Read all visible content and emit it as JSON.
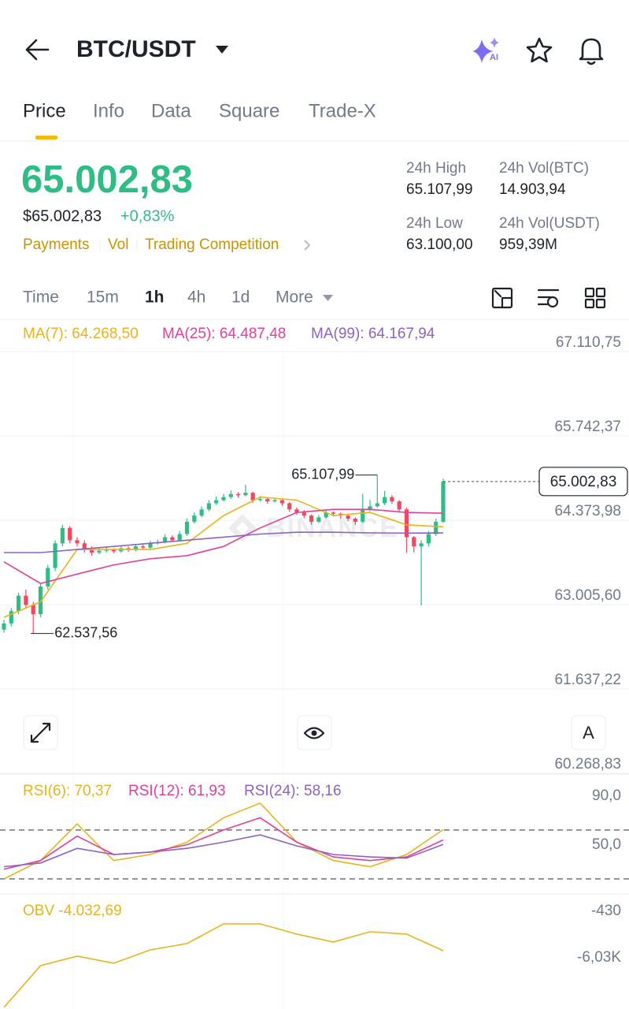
{
  "header": {
    "pair": "BTC/USDT",
    "ai_badge": "AI"
  },
  "tabs": [
    "Price",
    "Info",
    "Data",
    "Square",
    "Trade-X"
  ],
  "ticker": {
    "last_price": "65.002,83",
    "usd_price": "$65.002,83",
    "change": "+0,83%",
    "links": [
      "Payments",
      "Vol",
      "Trading Competition"
    ],
    "stats": [
      {
        "label": "24h High",
        "value": "65.107,99"
      },
      {
        "label": "24h Vol(BTC)",
        "value": "14.903,94"
      },
      {
        "label": "24h Low",
        "value": "63.100,00"
      },
      {
        "label": "24h Vol(USDT)",
        "value": "959,39M"
      }
    ]
  },
  "intervals": [
    "Time",
    "15m",
    "1h",
    "4h",
    "1d",
    "More"
  ],
  "chart_data": {
    "type": "candlestick",
    "up_color": "#2ebd85",
    "down_color": "#f6465d",
    "watermark": "BINANCE",
    "ylim": [
      60154,
      67571
    ],
    "yticks": [
      {
        "value": 67110.75,
        "label": "67.110,75"
      },
      {
        "value": 65742.37,
        "label": "65.742,37"
      },
      {
        "value": 64373.98,
        "label": "64.373,98"
      },
      {
        "value": 63005.6,
        "label": "63.005,60"
      },
      {
        "value": 61637.22,
        "label": "61.637,22"
      },
      {
        "value": 60268.83,
        "label": "60.268,83"
      }
    ],
    "grid": true,
    "candles": [
      [
        62600,
        62760,
        62550,
        62700
      ],
      [
        62700,
        62950,
        62650,
        62900
      ],
      [
        62900,
        63200,
        62850,
        63150
      ],
      [
        63150,
        63250,
        62950,
        63000
      ],
      [
        63000,
        63050,
        62537.56,
        62850
      ],
      [
        62850,
        63350,
        62800,
        63300
      ],
      [
        63300,
        63650,
        63250,
        63600
      ],
      [
        63600,
        64050,
        63550,
        64000
      ],
      [
        64000,
        64300,
        63950,
        64250
      ],
      [
        64250,
        64280,
        64000,
        64050
      ],
      [
        64050,
        64100,
        63950,
        64000
      ],
      [
        64000,
        64050,
        63850,
        63900
      ],
      [
        63900,
        63950,
        63800,
        63850
      ],
      [
        63850,
        63930,
        63820,
        63880
      ],
      [
        63880,
        63950,
        63850,
        63900
      ],
      [
        63900,
        63920,
        63840,
        63870
      ],
      [
        63870,
        63960,
        63850,
        63920
      ],
      [
        63920,
        63950,
        63860,
        63890
      ],
      [
        63890,
        63990,
        63870,
        63950
      ],
      [
        63950,
        63980,
        63900,
        63930
      ],
      [
        63930,
        64040,
        63910,
        64000
      ],
      [
        64000,
        64060,
        63980,
        64020
      ],
      [
        64020,
        64150,
        64000,
        64100
      ],
      [
        64100,
        64130,
        64020,
        64050
      ],
      [
        64050,
        64200,
        64030,
        64150
      ],
      [
        64150,
        64400,
        64120,
        64350
      ],
      [
        64350,
        64500,
        64320,
        64450
      ],
      [
        64450,
        64600,
        64420,
        64550
      ],
      [
        64550,
        64700,
        64520,
        64650
      ],
      [
        64650,
        64760,
        64620,
        64700
      ],
      [
        64700,
        64800,
        64680,
        64750
      ],
      [
        64750,
        64860,
        64720,
        64800
      ],
      [
        64800,
        64830,
        64740,
        64780
      ],
      [
        64780,
        64950,
        64760,
        64820
      ],
      [
        64820,
        64840,
        64660,
        64700
      ],
      [
        64700,
        64770,
        64680,
        64720
      ],
      [
        64720,
        64740,
        64640,
        64680
      ],
      [
        64680,
        64740,
        64660,
        64700
      ],
      [
        64700,
        64720,
        64610,
        64650
      ],
      [
        64650,
        64670,
        64510,
        64550
      ],
      [
        64550,
        64580,
        64460,
        64500
      ],
      [
        64500,
        64540,
        64410,
        64450
      ],
      [
        64450,
        64470,
        64300,
        64350
      ],
      [
        64350,
        64460,
        64330,
        64420
      ],
      [
        64420,
        64540,
        64400,
        64500
      ],
      [
        64500,
        64520,
        64440,
        64480
      ],
      [
        64480,
        64500,
        64400,
        64450
      ],
      [
        64450,
        64470,
        64360,
        64400
      ],
      [
        64400,
        64420,
        64300,
        64350
      ],
      [
        64350,
        64800,
        64330,
        64550
      ],
      [
        64550,
        64700,
        64520,
        64600
      ],
      [
        64600,
        65107.99,
        64580,
        64650
      ],
      [
        64650,
        64850,
        64620,
        64750
      ],
      [
        64750,
        64780,
        64640,
        64680
      ],
      [
        64680,
        64700,
        64500,
        64550
      ],
      [
        64550,
        64580,
        63850,
        64100
      ],
      [
        64100,
        64120,
        63850,
        63950
      ],
      [
        63950,
        64050,
        62992,
        64000
      ],
      [
        64000,
        64200,
        63950,
        64150
      ],
      [
        64150,
        64400,
        64120,
        64350
      ],
      [
        64350,
        65050,
        64330,
        65002.83
      ]
    ],
    "x": [
      0,
      5,
      10,
      15,
      20,
      25,
      30,
      35,
      40,
      45,
      50,
      55,
      60
    ],
    "series": [
      {
        "name": "MA(7): 64.268,50",
        "color": "#e8b41b",
        "values": [
          62800,
          63050,
          63900,
          63900,
          63900,
          64000,
          64450,
          64750,
          64700,
          64450,
          64500,
          64300,
          64268.5
        ]
      },
      {
        "name": "MA(25): 64.487,48",
        "color": "#e0409c",
        "values": [
          63700,
          63350,
          63500,
          63650,
          63750,
          63800,
          63950,
          64250,
          64500,
          64550,
          64550,
          64500,
          64487.48
        ]
      },
      {
        "name": "MA(99): 64.167,94",
        "color": "#8f62c2",
        "values": [
          63850,
          63850,
          63900,
          63950,
          64000,
          64050,
          64100,
          64150,
          64180,
          64180,
          64170,
          64165,
          64167.94
        ]
      }
    ],
    "annotations": [
      {
        "value": 65107.99,
        "label": "65.107,99"
      },
      {
        "value": 62537.56,
        "label": "62.537,56"
      }
    ],
    "current_price": {
      "value": 65002.83,
      "label": "65.002,83"
    },
    "controls": {
      "auto": "A"
    },
    "rsi": {
      "ylim": [
        20.3,
        110.6
      ],
      "yticks": [
        {
          "value": 90,
          "label": "90,0"
        },
        {
          "value": 50,
          "label": "50,0"
        }
      ],
      "levels": [
        70,
        30
      ],
      "series": [
        {
          "name": "RSI(6): 70,37",
          "color": "#e8b41b",
          "values": [
            30,
            45,
            75,
            45,
            50,
            60,
            80,
            92,
            60,
            45,
            40,
            50,
            70.37
          ]
        },
        {
          "name": "RSI(12): 61,93",
          "color": "#e0409c",
          "values": [
            38,
            45,
            65,
            50,
            52,
            58,
            70,
            80,
            60,
            48,
            45,
            48,
            61.93
          ]
        },
        {
          "name": "RSI(24): 58,16",
          "color": "#8f62c2",
          "values": [
            40,
            43,
            55,
            50,
            52,
            55,
            60,
            66,
            57,
            50,
            48,
            47,
            58.16
          ]
        }
      ]
    },
    "obv": {
      "ylim": [
        -11060,
        2228
      ],
      "yticks": [
        -430,
        {
          "value": -6030,
          "label": "-6,03K"
        }
      ],
      "series": [
        {
          "name": "OBV -4.032,69",
          "color": "#e8b41b",
          "values": [
            -10870,
            -5840,
            -4700,
            -5550,
            -3940,
            -3180,
            -810,
            -810,
            -2040,
            -2990,
            -1760,
            -2040,
            -4032.69
          ]
        }
      ]
    }
  }
}
